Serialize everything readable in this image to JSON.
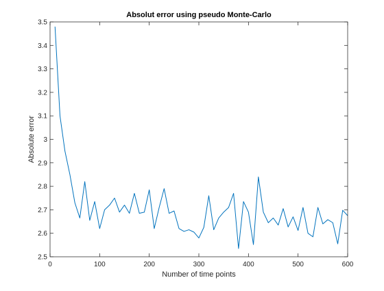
{
  "chart_data": {
    "type": "line",
    "title": "Absolut error using pseudo Monte-Carlo",
    "xlabel": "Number of time points",
    "ylabel": "Absolute error",
    "xlim": [
      0,
      600
    ],
    "ylim": [
      2.5,
      3.5
    ],
    "xticks": [
      "0",
      "100",
      "200",
      "300",
      "400",
      "500",
      "600"
    ],
    "yticks": [
      "2.5",
      "2.6",
      "2.7",
      "2.8",
      "2.9",
      "3",
      "3.1",
      "3.2",
      "3.3",
      "3.4",
      "3.5"
    ],
    "grid": false,
    "legend": "none",
    "series": [
      {
        "color": "#0072BD",
        "x": [
          10,
          20,
          30,
          40,
          50,
          60,
          70,
          80,
          90,
          100,
          110,
          120,
          130,
          140,
          150,
          160,
          170,
          180,
          190,
          200,
          210,
          220,
          230,
          240,
          250,
          260,
          270,
          280,
          290,
          300,
          310,
          320,
          330,
          340,
          350,
          360,
          370,
          380,
          390,
          400,
          410,
          420,
          430,
          440,
          450,
          460,
          470,
          480,
          490,
          500,
          510,
          520,
          530,
          540,
          550,
          560,
          570,
          580,
          590,
          600
        ],
        "y": [
          3.48,
          3.1,
          2.95,
          2.85,
          2.73,
          2.665,
          2.82,
          2.655,
          2.735,
          2.62,
          2.7,
          2.72,
          2.75,
          2.69,
          2.72,
          2.685,
          2.77,
          2.685,
          2.69,
          2.785,
          2.62,
          2.71,
          2.79,
          2.685,
          2.695,
          2.62,
          2.608,
          2.615,
          2.605,
          2.58,
          2.625,
          2.76,
          2.615,
          2.665,
          2.69,
          2.71,
          2.77,
          2.535,
          2.735,
          2.69,
          2.552,
          2.84,
          2.69,
          2.645,
          2.665,
          2.635,
          2.705,
          2.627,
          2.67,
          2.612,
          2.71,
          2.6,
          2.585,
          2.71,
          2.64,
          2.658,
          2.645,
          2.555,
          2.698,
          2.675
        ]
      }
    ]
  }
}
